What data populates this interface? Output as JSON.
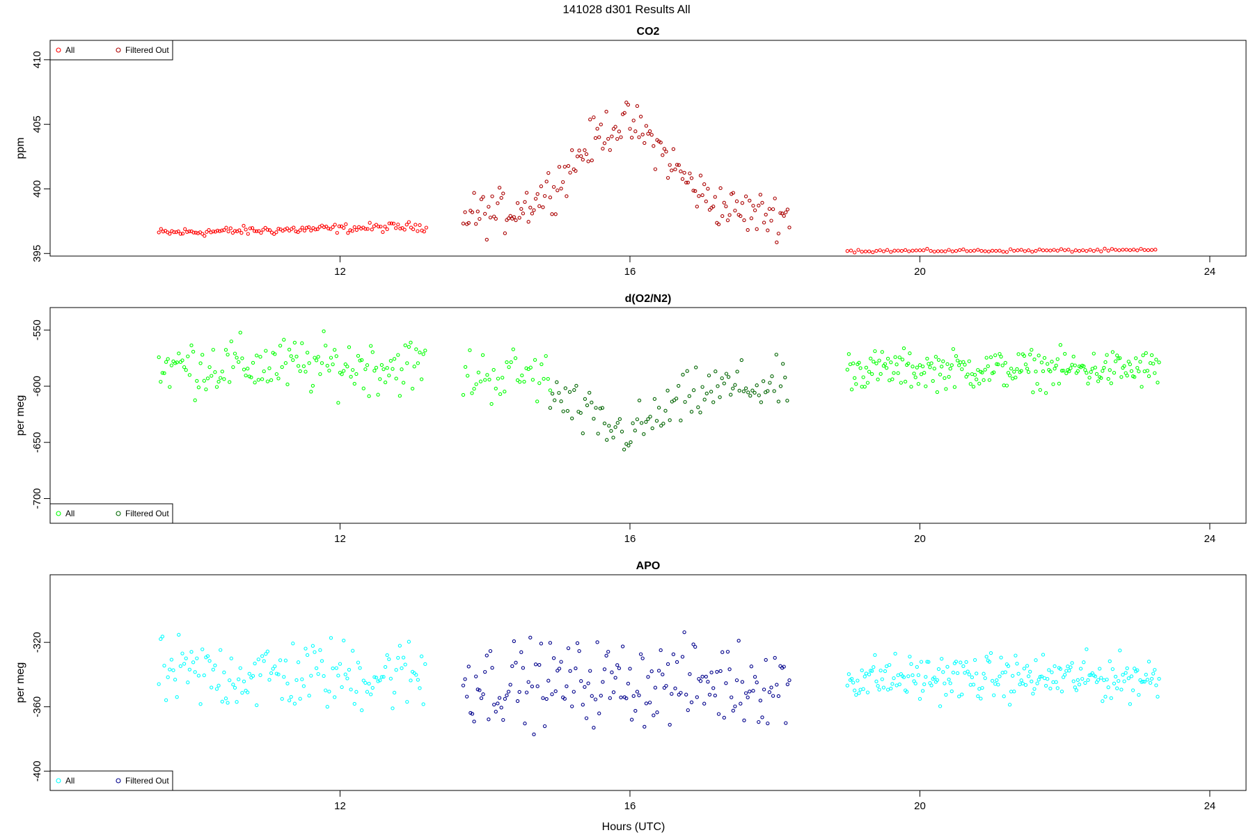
{
  "page": {
    "title": "141028   d301   Results All",
    "x_label": "Hours (UTC)"
  },
  "chart_data": [
    {
      "type": "scatter",
      "title": "CO2",
      "ylabel": "ppm",
      "xlim": [
        8.0,
        24.5
      ],
      "ylim": [
        394.8,
        411.5
      ],
      "xticks": [
        12,
        16,
        20,
        24
      ],
      "yticks": [
        395,
        400,
        405,
        410
      ],
      "legend_position": "top-left",
      "series": [
        {
          "name": "All",
          "color": "#ff0000",
          "segments": [
            {
              "x_start": 9.5,
              "x_end": 13.2,
              "step": 0.03,
              "base": 396.6,
              "slope": 0.5,
              "noise": 0.25,
              "dip": 0
            },
            {
              "x_start": 19.0,
              "x_end": 23.3,
              "step": 0.05,
              "base": 395.2,
              "slope": 0.05,
              "noise": 0.08,
              "dip": 0
            }
          ]
        },
        {
          "name": "Filtered Out",
          "color": "#aa0000",
          "segments": [
            {
              "x_start": 13.7,
              "x_end": 18.2,
              "step": 0.025,
              "base": 398.0,
              "slope": 0,
              "noise": 1.2,
              "dip": 7.0,
              "dip_center": 15.9,
              "dip_width": 0.9
            }
          ]
        }
      ]
    },
    {
      "type": "scatter",
      "title": "d(O2/N2)",
      "ylabel": "per meg",
      "xlim": [
        8.0,
        24.5
      ],
      "ylim": [
        -722,
        -530
      ],
      "xticks": [
        12,
        16,
        20,
        24
      ],
      "yticks": [
        -550,
        -600,
        -650,
        -700
      ],
      "legend_position": "bottom-left",
      "series": [
        {
          "name": "All",
          "color": "#00ff00",
          "segments": [
            {
              "x_start": 9.5,
              "x_end": 13.2,
              "step": 0.025,
              "base": -582,
              "slope": 0,
              "noise": 18,
              "dip": 0
            },
            {
              "x_start": 13.7,
              "x_end": 14.9,
              "step": 0.03,
              "base": -590,
              "slope": 0,
              "noise": 18,
              "dip": 0
            },
            {
              "x_start": 19.0,
              "x_end": 23.3,
              "step": 0.02,
              "base": -585,
              "slope": 0,
              "noise": 12,
              "dip": 0
            }
          ]
        },
        {
          "name": "Filtered Out",
          "color": "#006400",
          "segments": [
            {
              "x_start": 14.9,
              "x_end": 18.2,
              "step": 0.03,
              "base": -600,
              "slope": 0,
              "noise": 16,
              "dip": -40,
              "dip_center": 15.9,
              "dip_width": 0.8
            }
          ]
        }
      ]
    },
    {
      "type": "scatter",
      "title": "APO",
      "ylabel": "per meg",
      "xlim": [
        8.0,
        24.5
      ],
      "ylim": [
        -412,
        -278
      ],
      "xticks": [
        12,
        16,
        20,
        24
      ],
      "yticks": [
        -320,
        -360,
        -400
      ],
      "legend_position": "bottom-left",
      "series": [
        {
          "name": "All",
          "color": "#00ffff",
          "segments": [
            {
              "x_start": 9.5,
              "x_end": 13.2,
              "step": 0.025,
              "base": -340,
              "slope": 0,
              "noise": 16,
              "dip": 0
            },
            {
              "x_start": 19.0,
              "x_end": 23.3,
              "step": 0.02,
              "base": -342,
              "slope": 0,
              "noise": 10,
              "dip": 0
            }
          ]
        },
        {
          "name": "Filtered Out",
          "color": "#00008b",
          "segments": [
            {
              "x_start": 13.7,
              "x_end": 18.2,
              "step": 0.025,
              "base": -345,
              "slope": 0,
              "noise": 18,
              "dip": 0
            }
          ]
        }
      ]
    }
  ]
}
